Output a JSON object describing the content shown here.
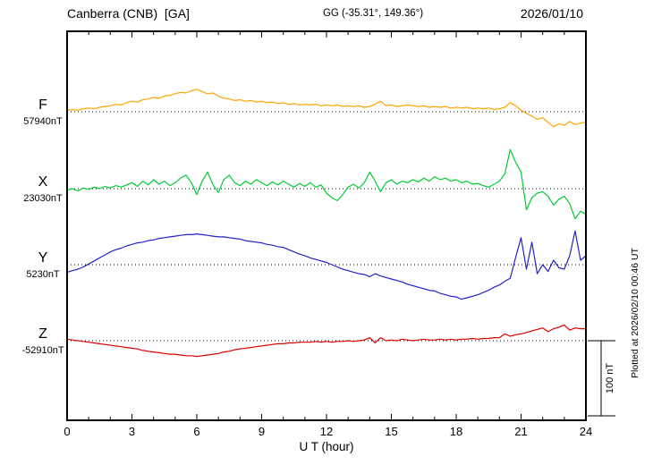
{
  "header": {
    "station": "Canberra (CNB)  [GA]",
    "coords": "GG (-35.31°, 149.36°)",
    "date": "2026/01/10"
  },
  "side": {
    "scale_label": "100 nT",
    "plotted": "Plotted at 2026/02/10 00:46 UT"
  },
  "chart_data": {
    "type": "line",
    "title": "Canberra (CNB) [GA] magnetogram 2026/01/10",
    "xlabel": "U T (hour)",
    "x_range": [
      0,
      24
    ],
    "x_ticks": [
      0,
      3,
      6,
      9,
      12,
      15,
      18,
      21,
      24
    ],
    "x_minor_step": 1,
    "sample_step_hours": 0.25,
    "scale_bar_nT": 100,
    "units": "nT",
    "series": [
      {
        "name": "F",
        "baseline_label": "57940nT",
        "baseline_value": 57940,
        "color": "#FFA500",
        "values": [
          2,
          3,
          2,
          4,
          5,
          4,
          6,
          7,
          8,
          10,
          9,
          12,
          14,
          13,
          16,
          17,
          19,
          18,
          21,
          22,
          24,
          26,
          25,
          28,
          30,
          27,
          24,
          25,
          21,
          18,
          17,
          15,
          16,
          14,
          15,
          13,
          14,
          12,
          13,
          11,
          12,
          10,
          11,
          9,
          10,
          9,
          10,
          8,
          9,
          8,
          9,
          7,
          8,
          7,
          8,
          6,
          7,
          10,
          14,
          8,
          9,
          7,
          8,
          9,
          8,
          7,
          8,
          6,
          7,
          6,
          7,
          5,
          6,
          5,
          6,
          4,
          5,
          4,
          5,
          3,
          4,
          6,
          12,
          8,
          2,
          -2,
          -6,
          -10,
          -8,
          -14,
          -20,
          -16,
          -18,
          -13,
          -17,
          -15,
          -14
        ]
      },
      {
        "name": "X",
        "baseline_label": "23030nT",
        "baseline_value": 23030,
        "color": "#00CC33",
        "values": [
          -2,
          0,
          -3,
          1,
          -1,
          2,
          0,
          3,
          1,
          4,
          2,
          5,
          8,
          3,
          10,
          5,
          12,
          6,
          10,
          4,
          8,
          14,
          18,
          8,
          -8,
          10,
          22,
          5,
          -5,
          12,
          18,
          8,
          4,
          10,
          6,
          12,
          8,
          4,
          9,
          5,
          10,
          6,
          2,
          7,
          3,
          8,
          2,
          5,
          -6,
          -12,
          -16,
          -8,
          2,
          6,
          1,
          8,
          22,
          10,
          -4,
          8,
          12,
          6,
          10,
          8,
          12,
          9,
          14,
          10,
          16,
          12,
          14,
          10,
          12,
          8,
          10,
          6,
          7,
          4,
          2,
          6,
          10,
          20,
          52,
          35,
          22,
          -28,
          -12,
          -6,
          -4,
          -10,
          -22,
          -14,
          -10,
          -20,
          -40,
          -30,
          -34
        ]
      },
      {
        "name": "Y",
        "baseline_label": "5230nT",
        "baseline_value": 5230,
        "color": "#2222CC",
        "values": [
          -10,
          -8,
          -6,
          -3,
          1,
          5,
          9,
          13,
          17,
          20,
          22,
          25,
          27,
          29,
          30,
          32,
          33,
          35,
          36,
          37,
          38,
          39,
          40,
          40,
          41,
          40,
          39,
          38,
          37,
          37,
          36,
          35,
          34,
          32,
          31,
          30,
          29,
          27,
          26,
          24,
          23,
          20,
          17,
          14,
          12,
          9,
          7,
          5,
          3,
          0,
          -3,
          -6,
          -8,
          -10,
          -12,
          -13,
          -16,
          -12,
          -15,
          -17,
          -19,
          -21,
          -23,
          -26,
          -28,
          -30,
          -32,
          -34,
          -35,
          -38,
          -40,
          -42,
          -43,
          -46,
          -44,
          -42,
          -40,
          -37,
          -34,
          -30,
          -27,
          -22,
          -18,
          10,
          36,
          -6,
          30,
          -12,
          0,
          -9,
          6,
          -4,
          -6,
          12,
          45,
          6,
          12
        ]
      },
      {
        "name": "Z",
        "baseline_label": "-52910nT",
        "baseline_value": -52910,
        "color": "#DD0000",
        "values": [
          2,
          1,
          0,
          -1,
          -2,
          -3,
          -4,
          -5,
          -6,
          -7,
          -8,
          -9,
          -10,
          -11,
          -13,
          -14,
          -15,
          -16,
          -17,
          -18,
          -18,
          -19,
          -20,
          -20,
          -21,
          -20,
          -19,
          -18,
          -17,
          -15,
          -14,
          -12,
          -11,
          -10,
          -9,
          -8,
          -7,
          -6,
          -5,
          -4,
          -4,
          -3,
          -3,
          -2,
          -2,
          -2,
          -1,
          -2,
          -1,
          -2,
          -1,
          -1,
          0,
          -1,
          0,
          1,
          4,
          -3,
          4,
          0,
          1,
          0,
          2,
          1,
          0,
          1,
          2,
          1,
          1,
          2,
          1,
          2,
          1,
          2,
          2,
          3,
          2,
          3,
          3,
          4,
          4,
          9,
          6,
          8,
          9,
          11,
          13,
          15,
          17,
          12,
          16,
          18,
          21,
          14,
          17,
          16,
          16
        ]
      }
    ]
  }
}
